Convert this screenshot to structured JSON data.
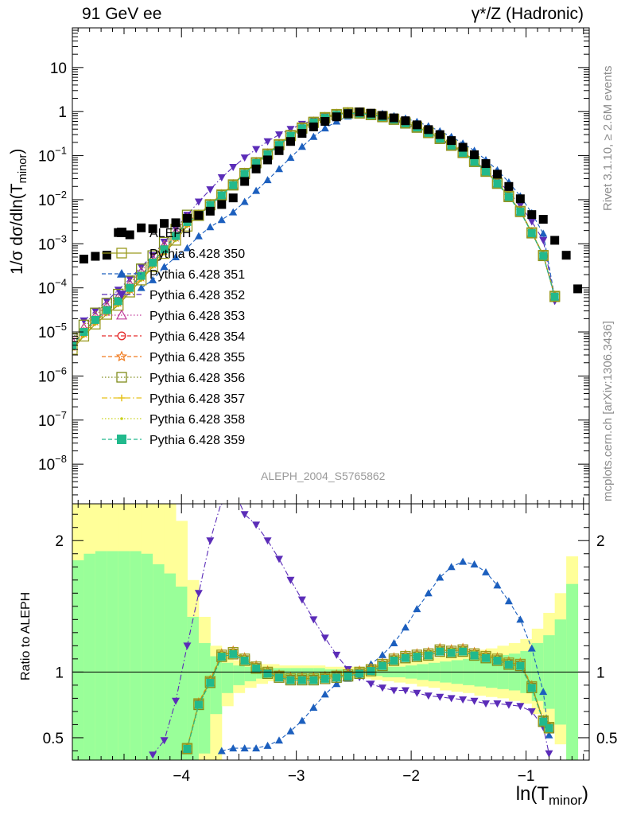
{
  "header": {
    "left": "91 GeV ee",
    "right": "γ*/Z (Hadronic)"
  },
  "side_labels": {
    "rivet": "Rivet 3.1.10, ≥ 2.6M events",
    "mcplots": "mcplots.cern.ch [arXiv:1306.3436]"
  },
  "analysis_id": "ALEPH_2004_S5765862",
  "axes": {
    "ylabel_top_pre": "1/σ  dσ/dln(T",
    "ylabel_top_sub": "minor",
    "ylabel_top_post": ")",
    "ylabel_bottom": "Ratio to ALEPH",
    "xlabel_pre": "ln(T",
    "xlabel_sub": "minor",
    "xlabel_post": ")"
  },
  "chart_data": {
    "type": "scatter",
    "xlim": [
      -4.95,
      -0.45
    ],
    "top_ylim_log10": [
      -8.9,
      1.9
    ],
    "top_yscale": "log",
    "ratio_ylim": [
      0.33,
      2.28
    ],
    "x_ticks": [
      -4,
      -3,
      -2,
      -1
    ],
    "x_tick_labels": [
      "−4",
      "−3",
      "−2",
      "−1"
    ],
    "top_y_ticks_log10": [
      -8,
      -7,
      -6,
      -5,
      -4,
      -3,
      -2,
      -1,
      0,
      1
    ],
    "top_y_tick_labels": [
      {
        "base": "10",
        "exp": "−8"
      },
      {
        "base": "10",
        "exp": "−7"
      },
      {
        "base": "10",
        "exp": "−6"
      },
      {
        "base": "10",
        "exp": "−5"
      },
      {
        "base": "10",
        "exp": "−4"
      },
      {
        "base": "10",
        "exp": "−3"
      },
      {
        "base": "10",
        "exp": "−2"
      },
      {
        "base": "10",
        "exp": "−1"
      },
      {
        "base": "1",
        "exp": ""
      },
      {
        "base": "10",
        "exp": ""
      }
    ],
    "ratio_y_ticks": [
      0.5,
      1,
      2
    ],
    "ratio_y_tick_labels": [
      "0.5",
      "1",
      "2"
    ],
    "legend_position": "center-left",
    "data": {
      "name": "ALEPH",
      "color": "#000000",
      "x": [
        -4.85,
        -4.75,
        -4.65,
        -4.55,
        -4.45,
        -4.35,
        -4.25,
        -4.15,
        -4.05,
        -3.95,
        -3.85,
        -3.75,
        -3.65,
        -3.55,
        -3.45,
        -3.35,
        -3.25,
        -3.15,
        -3.05,
        -2.95,
        -2.85,
        -2.75,
        -2.65,
        -2.55,
        -2.45,
        -2.35,
        -2.25,
        -2.15,
        -2.05,
        -1.95,
        -1.85,
        -1.75,
        -1.65,
        -1.55,
        -1.45,
        -1.35,
        -1.25,
        -1.15,
        -1.05,
        -0.95,
        -0.85,
        -0.75,
        -0.65,
        -0.55
      ],
      "y": [
        0.00045,
        0.00052,
        0.00055,
        0.0018,
        0.0016,
        0.0023,
        0.0022,
        0.0029,
        0.003,
        0.0038,
        0.0044,
        0.0055,
        0.0078,
        0.011,
        0.026,
        0.05,
        0.08,
        0.13,
        0.21,
        0.32,
        0.45,
        0.6,
        0.76,
        0.9,
        0.98,
        0.92,
        0.82,
        0.72,
        0.62,
        0.5,
        0.39,
        0.3,
        0.22,
        0.155,
        0.105,
        0.066,
        0.038,
        0.02,
        0.0105,
        0.0046,
        0.0036,
        0.0012,
        0.00055,
        9.5e-05
      ]
    },
    "series": [
      {
        "name": "Pythia 6.428 350",
        "color": "#9a9a1e",
        "marker": "square-open",
        "line": "solid",
        "x": [
          -4.95,
          -4.85,
          -4.75,
          -4.65,
          -4.55,
          -4.45,
          -4.35,
          -4.25,
          -4.15,
          -4.05,
          -3.95,
          -3.85,
          -3.75,
          -3.65,
          -3.55,
          -3.45,
          -3.35,
          -3.25,
          -3.15,
          -3.05,
          -2.95,
          -2.85,
          -2.75,
          -2.65,
          -2.55,
          -2.45,
          -2.35,
          -2.25,
          -2.15,
          -2.05,
          -1.95,
          -1.85,
          -1.75,
          -1.65,
          -1.55,
          -1.45,
          -1.35,
          -1.25,
          -1.15,
          -1.05,
          -0.95,
          -0.85,
          -0.75
        ],
        "y": [
          4e-06,
          8e-06,
          1.5e-05,
          2.5e-05,
          4e-05,
          8e-05,
          0.00015,
          0.0003,
          0.0006,
          0.0012,
          0.0025,
          0.0045,
          0.0078,
          0.013,
          0.022,
          0.04,
          0.07,
          0.11,
          0.18,
          0.29,
          0.43,
          0.58,
          0.74,
          0.87,
          0.95,
          0.94,
          0.87,
          0.78,
          0.68,
          0.56,
          0.45,
          0.34,
          0.25,
          0.175,
          0.12,
          0.075,
          0.045,
          0.024,
          0.012,
          0.0055,
          0.0018,
          0.00055,
          6.5e-05
        ],
        "ratio_x": [
          -3.95,
          -3.85,
          -3.75,
          -3.65,
          -3.55,
          -3.45,
          -3.35,
          -3.25,
          -3.15,
          -3.05,
          -2.95,
          -2.85,
          -2.75,
          -2.65,
          -2.55,
          -2.45,
          -2.35,
          -2.25,
          -2.15,
          -2.05,
          -1.95,
          -1.85,
          -1.75,
          -1.65,
          -1.55,
          -1.45,
          -1.35,
          -1.25,
          -1.15,
          -1.05,
          -0.95,
          -0.85,
          -0.8
        ],
        "ratio": [
          0.42,
          0.76,
          0.93,
          1.13,
          1.15,
          1.1,
          1.04,
          1.0,
          0.97,
          0.95,
          0.95,
          0.95,
          0.96,
          0.97,
          0.98,
          1.0,
          1.02,
          1.06,
          1.1,
          1.12,
          1.13,
          1.14,
          1.17,
          1.16,
          1.17,
          1.14,
          1.12,
          1.1,
          1.07,
          1.06,
          0.89,
          0.63,
          0.58
        ]
      },
      {
        "name": "Pythia 6.428 351",
        "color": "#1c5fbe",
        "marker": "triangle-up",
        "line": "dashed",
        "x": [
          -4.35,
          -4.25,
          -4.15,
          -4.05,
          -3.95,
          -3.85,
          -3.75,
          -3.65,
          -3.55,
          -3.45,
          -3.35,
          -3.25,
          -3.15,
          -3.05,
          -2.95,
          -2.85,
          -2.75,
          -2.65,
          -2.55,
          -2.45,
          -2.35,
          -2.25,
          -2.15,
          -2.05,
          -1.95,
          -1.85,
          -1.75,
          -1.65,
          -1.55,
          -1.45,
          -1.35,
          -1.25,
          -1.15,
          -1.05,
          -0.95,
          -0.85,
          -0.75
        ],
        "y": [
          0.0001,
          0.00015,
          0.0003,
          0.0005,
          0.0008,
          0.0015,
          0.0024,
          0.0035,
          0.0052,
          0.009,
          0.016,
          0.028,
          0.05,
          0.09,
          0.16,
          0.27,
          0.42,
          0.6,
          0.78,
          0.92,
          0.94,
          0.9,
          0.8,
          0.7,
          0.59,
          0.47,
          0.36,
          0.27,
          0.19,
          0.13,
          0.08,
          0.047,
          0.025,
          0.012,
          0.005,
          0.0017,
          6e-05
        ],
        "ratio_x": [
          -3.65,
          -3.55,
          -3.45,
          -3.35,
          -3.25,
          -3.15,
          -3.05,
          -2.95,
          -2.85,
          -2.75,
          -2.65,
          -2.55,
          -2.45,
          -2.35,
          -2.25,
          -2.15,
          -2.05,
          -1.95,
          -1.85,
          -1.75,
          -1.65,
          -1.55,
          -1.45,
          -1.35,
          -1.25,
          -1.15,
          -1.05,
          -0.95,
          -0.85,
          -0.8
        ],
        "ratio": [
          0.4,
          0.42,
          0.42,
          0.42,
          0.44,
          0.48,
          0.55,
          0.63,
          0.73,
          0.83,
          0.91,
          0.95,
          0.99,
          1.06,
          1.13,
          1.22,
          1.34,
          1.48,
          1.6,
          1.72,
          1.8,
          1.84,
          1.82,
          1.76,
          1.66,
          1.54,
          1.4,
          1.18,
          0.85,
          0.52
        ]
      },
      {
        "name": "Pythia 6.428 352",
        "color": "#5b2cb8",
        "marker": "triangle-down",
        "line": "dashdot",
        "x": [
          -4.85,
          -4.75,
          -4.65,
          -4.55,
          -4.45,
          -4.35,
          -4.25,
          -4.15,
          -4.05,
          -3.95,
          -3.85,
          -3.75,
          -3.65,
          -3.55,
          -3.45,
          -3.35,
          -3.25,
          -3.15,
          -3.05,
          -2.95,
          -2.85,
          -2.75,
          -2.65,
          -2.55,
          -2.45,
          -2.35,
          -2.25,
          -2.15,
          -2.05,
          -1.95,
          -1.85,
          -1.75,
          -1.65,
          -1.55,
          -1.45,
          -1.35,
          -1.25,
          -1.15,
          -1.05,
          -0.95,
          -0.85,
          -0.75
        ],
        "y": [
          1.8e-05,
          3e-05,
          5e-05,
          9e-05,
          0.00016,
          0.0003,
          0.00055,
          0.0011,
          0.0022,
          0.0045,
          0.009,
          0.017,
          0.032,
          0.055,
          0.09,
          0.14,
          0.21,
          0.3,
          0.4,
          0.52,
          0.64,
          0.76,
          0.86,
          0.92,
          0.94,
          0.87,
          0.75,
          0.63,
          0.52,
          0.41,
          0.31,
          0.23,
          0.165,
          0.115,
          0.076,
          0.048,
          0.028,
          0.015,
          0.0075,
          0.0032,
          0.0012,
          5e-05
        ],
        "ratio_x": [
          -4.25,
          -4.15,
          -4.05,
          -3.95,
          -3.85,
          -3.75,
          -3.65,
          -3.55,
          -3.45,
          -3.35,
          -3.25,
          -3.15,
          -3.05,
          -2.95,
          -2.85,
          -2.75,
          -2.65,
          -2.55,
          -2.45,
          -2.35,
          -2.25,
          -2.15,
          -2.05,
          -1.95,
          -1.85,
          -1.75,
          -1.65,
          -1.55,
          -1.45,
          -1.35,
          -1.25,
          -1.15,
          -1.05,
          -0.95,
          -0.85,
          -0.8
        ],
        "ratio": [
          0.37,
          0.48,
          0.78,
          1.2,
          1.6,
          2.0,
          2.3,
          2.4,
          2.2,
          2.12,
          2.0,
          1.86,
          1.7,
          1.55,
          1.4,
          1.26,
          1.13,
          1.02,
          0.96,
          0.91,
          0.88,
          0.86,
          0.86,
          0.84,
          0.82,
          0.81,
          0.8,
          0.79,
          0.78,
          0.76,
          0.76,
          0.75,
          0.74,
          0.7,
          0.58,
          0.38
        ]
      },
      {
        "name": "Pythia 6.428 353",
        "color": "#c23b9a",
        "marker": "triangle-up-open",
        "line": "dotted"
      },
      {
        "name": "Pythia 6.428 354",
        "color": "#e52a2a",
        "marker": "circle-open",
        "line": "dashed"
      },
      {
        "name": "Pythia 6.428 355",
        "color": "#f07a1e",
        "marker": "star-open",
        "line": "dashed"
      },
      {
        "name": "Pythia 6.428 356",
        "color": "#7f8c1a",
        "marker": "square-open",
        "line": "dotted"
      },
      {
        "name": "Pythia 6.428 357",
        "color": "#e6c21c",
        "marker": "cross",
        "line": "dashdot"
      },
      {
        "name": "Pythia 6.428 358",
        "color": "#c9d21a",
        "marker": "dot",
        "line": "dotted"
      },
      {
        "name": "Pythia 6.428 359",
        "color": "#21b98c",
        "marker": "square",
        "line": "dashed"
      }
    ],
    "ratio_bands": {
      "x_edges": [
        -4.95,
        -4.85,
        -4.75,
        -4.65,
        -4.55,
        -4.45,
        -4.35,
        -4.25,
        -4.15,
        -4.05,
        -3.95,
        -3.85,
        -3.75,
        -3.65,
        -3.55,
        -3.45,
        -3.35,
        -3.25,
        -3.15,
        -3.05,
        -2.95,
        -2.85,
        -2.75,
        -2.65,
        -2.55,
        -2.45,
        -2.35,
        -2.25,
        -2.15,
        -2.05,
        -1.95,
        -1.85,
        -1.75,
        -1.65,
        -1.55,
        -1.45,
        -1.35,
        -1.25,
        -1.15,
        -1.05,
        -0.95,
        -0.85,
        -0.75,
        -0.65,
        -0.55
      ],
      "inner_lo": [
        0.33,
        0.33,
        0.33,
        0.33,
        0.33,
        0.33,
        0.33,
        0.33,
        0.33,
        0.33,
        0.33,
        0.38,
        0.68,
        0.84,
        0.9,
        0.93,
        0.95,
        0.96,
        0.97,
        0.97,
        0.97,
        0.97,
        0.98,
        0.98,
        0.98,
        0.98,
        0.97,
        0.96,
        0.96,
        0.95,
        0.94,
        0.93,
        0.92,
        0.91,
        0.9,
        0.89,
        0.88,
        0.87,
        0.86,
        0.84,
        0.78,
        0.72,
        0.6,
        0.33
      ],
      "inner_hi": [
        1.85,
        1.9,
        1.92,
        1.92,
        1.92,
        1.92,
        1.9,
        1.82,
        1.75,
        1.65,
        1.42,
        1.22,
        1.12,
        1.07,
        1.05,
        1.04,
        1.03,
        1.03,
        1.03,
        1.03,
        1.03,
        1.03,
        1.02,
        1.02,
        1.02,
        1.02,
        1.03,
        1.04,
        1.04,
        1.05,
        1.06,
        1.07,
        1.08,
        1.09,
        1.1,
        1.11,
        1.12,
        1.13,
        1.14,
        1.16,
        1.22,
        1.28,
        1.4,
        1.67
      ],
      "outer_lo": [
        0.33,
        0.33,
        0.33,
        0.33,
        0.33,
        0.33,
        0.33,
        0.33,
        0.33,
        0.33,
        0.33,
        0.33,
        0.33,
        0.74,
        0.84,
        0.88,
        0.91,
        0.93,
        0.94,
        0.94,
        0.94,
        0.94,
        0.95,
        0.95,
        0.95,
        0.95,
        0.94,
        0.93,
        0.92,
        0.91,
        0.89,
        0.88,
        0.86,
        0.85,
        0.84,
        0.82,
        0.81,
        0.8,
        0.78,
        0.76,
        0.68,
        0.6,
        0.45,
        0.33
      ],
      "outer_hi": [
        2.28,
        2.28,
        2.28,
        2.28,
        2.28,
        2.28,
        2.28,
        2.28,
        2.28,
        2.15,
        1.7,
        1.42,
        1.2,
        1.12,
        1.09,
        1.07,
        1.06,
        1.06,
        1.05,
        1.05,
        1.05,
        1.05,
        1.04,
        1.04,
        1.04,
        1.04,
        1.05,
        1.06,
        1.07,
        1.08,
        1.1,
        1.11,
        1.12,
        1.14,
        1.15,
        1.17,
        1.18,
        1.2,
        1.22,
        1.25,
        1.33,
        1.45,
        1.6,
        1.88
      ]
    }
  }
}
